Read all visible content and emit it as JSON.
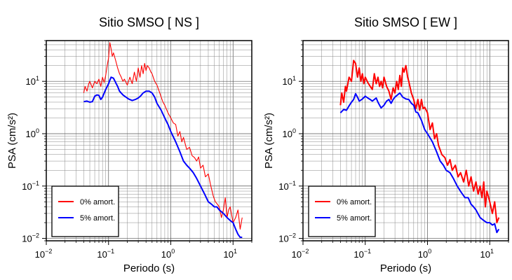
{
  "chart_data": [
    {
      "type": "line",
      "title": "Sitio SMSO [ NS ]",
      "xlabel": "Periodo (s)",
      "ylabel": "PSA (cm/s²)",
      "xscale": "log",
      "yscale": "log",
      "xlim": [
        0.01,
        20
      ],
      "ylim": [
        0.009,
        60
      ],
      "grid": true,
      "legend_position": "bottom-left",
      "series": [
        {
          "name": "0% amort.",
          "color": "#ff0000",
          "x": [
            0.04,
            0.042,
            0.045,
            0.048,
            0.05,
            0.055,
            0.06,
            0.065,
            0.07,
            0.075,
            0.08,
            0.085,
            0.09,
            0.095,
            0.1,
            0.105,
            0.11,
            0.115,
            0.12,
            0.13,
            0.14,
            0.15,
            0.16,
            0.17,
            0.18,
            0.2,
            0.22,
            0.24,
            0.26,
            0.28,
            0.3,
            0.32,
            0.34,
            0.36,
            0.38,
            0.4,
            0.42,
            0.45,
            0.48,
            0.5,
            0.55,
            0.6,
            0.65,
            0.7,
            0.75,
            0.8,
            0.9,
            1.0,
            1.1,
            1.2,
            1.3,
            1.4,
            1.5,
            1.6,
            1.8,
            2.0,
            2.2,
            2.4,
            2.6,
            2.8,
            3.0,
            3.3,
            3.6,
            4.0,
            4.4,
            4.8,
            5.2,
            5.6,
            6.0,
            6.5,
            7.0,
            7.5,
            8.0,
            8.5,
            9.0,
            10.0,
            11.0,
            12.0,
            13.0,
            14.0
          ],
          "y": [
            6.0,
            8.0,
            6.5,
            9.0,
            10.0,
            7.5,
            10.0,
            9.0,
            11.0,
            8.0,
            12.0,
            9.5,
            13.0,
            20.0,
            28.0,
            55.0,
            42.0,
            30.0,
            35.0,
            25.0,
            18.0,
            14.0,
            12.0,
            10.0,
            11.0,
            8.5,
            12.0,
            9.0,
            15.0,
            10.0,
            18.0,
            12.0,
            20.0,
            14.0,
            22.0,
            16.0,
            20.0,
            18.0,
            15.0,
            14.0,
            10.0,
            8.5,
            6.5,
            5.0,
            4.0,
            3.5,
            2.5,
            2.0,
            1.6,
            1.5,
            0.9,
            1.1,
            0.7,
            0.85,
            0.5,
            0.55,
            0.38,
            0.35,
            0.3,
            0.36,
            0.22,
            0.25,
            0.15,
            0.17,
            0.1,
            0.065,
            0.05,
            0.045,
            0.04,
            0.025,
            0.035,
            0.06,
            0.025,
            0.035,
            0.04,
            0.02,
            0.025,
            0.035,
            0.015,
            0.025
          ]
        },
        {
          "name": "5% amort.",
          "color": "#0000ff",
          "x": [
            0.04,
            0.045,
            0.05,
            0.055,
            0.06,
            0.065,
            0.07,
            0.075,
            0.08,
            0.09,
            0.1,
            0.105,
            0.11,
            0.12,
            0.13,
            0.14,
            0.15,
            0.17,
            0.19,
            0.21,
            0.24,
            0.27,
            0.3,
            0.33,
            0.36,
            0.4,
            0.45,
            0.5,
            0.55,
            0.6,
            0.7,
            0.8,
            0.9,
            1.0,
            1.2,
            1.4,
            1.6,
            1.8,
            2.0,
            2.3,
            2.6,
            3.0,
            3.5,
            4.0,
            4.5,
            5.0,
            5.5,
            6.0,
            7.0,
            8.0,
            9.0,
            10.0,
            11.0,
            12.0,
            13.0,
            14.0
          ],
          "y": [
            4.1,
            4.2,
            4.0,
            4.1,
            5.2,
            5.5,
            5.4,
            4.5,
            5.0,
            7.0,
            9.0,
            10.5,
            12.0,
            11.5,
            9.5,
            8.0,
            6.5,
            5.5,
            5.0,
            4.6,
            4.3,
            4.5,
            4.8,
            5.3,
            6.0,
            6.5,
            6.5,
            6.0,
            5.0,
            3.8,
            2.8,
            2.0,
            1.5,
            1.1,
            0.7,
            0.45,
            0.3,
            0.25,
            0.22,
            0.18,
            0.14,
            0.1,
            0.07,
            0.05,
            0.045,
            0.04,
            0.04,
            0.035,
            0.03,
            0.025,
            0.022,
            0.02,
            0.015,
            0.012,
            0.0105,
            0.0105
          ]
        }
      ]
    },
    {
      "type": "line",
      "title": "Sitio SMSO [ EW ]",
      "xlabel": "Periodo (s)",
      "ylabel": "PSA (cm/s²)",
      "xscale": "log",
      "yscale": "log",
      "xlim": [
        0.01,
        20
      ],
      "ylim": [
        0.009,
        60
      ],
      "grid": true,
      "legend_position": "bottom-left",
      "series": [
        {
          "name": "0% amort.",
          "color": "#ff0000",
          "x": [
            0.04,
            0.042,
            0.045,
            0.048,
            0.05,
            0.055,
            0.06,
            0.065,
            0.07,
            0.075,
            0.08,
            0.085,
            0.09,
            0.095,
            0.1,
            0.11,
            0.12,
            0.13,
            0.14,
            0.15,
            0.16,
            0.17,
            0.18,
            0.19,
            0.2,
            0.22,
            0.24,
            0.26,
            0.28,
            0.3,
            0.32,
            0.34,
            0.36,
            0.38,
            0.4,
            0.42,
            0.45,
            0.48,
            0.5,
            0.55,
            0.6,
            0.65,
            0.7,
            0.75,
            0.8,
            0.85,
            0.9,
            1.0,
            1.1,
            1.2,
            1.3,
            1.4,
            1.5,
            1.7,
            1.9,
            2.1,
            2.3,
            2.5,
            2.8,
            3.1,
            3.4,
            3.8,
            4.2,
            4.6,
            5.0,
            5.5,
            6.0,
            6.5,
            7.0,
            7.5,
            8.0,
            8.5,
            9.0,
            10.0,
            11.0,
            12.0,
            13.0,
            14.0
          ],
          "y": [
            3.5,
            6.0,
            4.0,
            8.0,
            6.5,
            12.0,
            10.0,
            25.0,
            22.0,
            12.0,
            18.0,
            10.0,
            14.0,
            9.0,
            12.0,
            9.5,
            8.0,
            7.0,
            14.0,
            9.0,
            12.0,
            8.0,
            10.0,
            7.5,
            12.0,
            8.0,
            6.5,
            4.5,
            7.5,
            6.0,
            10.0,
            7.0,
            13.0,
            8.0,
            18.0,
            15.0,
            20.0,
            12.0,
            10.0,
            6.0,
            4.5,
            3.0,
            4.5,
            2.8,
            4.5,
            3.0,
            3.2,
            2.5,
            1.2,
            1.6,
            0.8,
            1.0,
            0.6,
            0.4,
            0.35,
            0.25,
            0.32,
            0.2,
            0.25,
            0.15,
            0.18,
            0.12,
            0.2,
            0.1,
            0.15,
            0.08,
            0.12,
            0.07,
            0.1,
            0.06,
            0.12,
            0.04,
            0.08,
            0.05,
            0.03,
            0.05,
            0.02,
            0.025
          ]
        },
        {
          "name": "5% amort.",
          "color": "#0000ff",
          "x": [
            0.04,
            0.045,
            0.05,
            0.055,
            0.06,
            0.065,
            0.07,
            0.075,
            0.08,
            0.09,
            0.1,
            0.11,
            0.12,
            0.13,
            0.14,
            0.15,
            0.16,
            0.17,
            0.18,
            0.2,
            0.22,
            0.24,
            0.26,
            0.28,
            0.3,
            0.33,
            0.36,
            0.4,
            0.45,
            0.5,
            0.55,
            0.6,
            0.65,
            0.7,
            0.8,
            0.9,
            1.0,
            1.2,
            1.4,
            1.6,
            1.8,
            2.0,
            2.3,
            2.6,
            3.0,
            3.5,
            4.0,
            4.5,
            5.0,
            5.5,
            6.0,
            7.0,
            8.0,
            9.0,
            10.0,
            11.0,
            12.0,
            13.0,
            14.0
          ],
          "y": [
            2.5,
            2.9,
            2.8,
            3.4,
            4.0,
            4.5,
            5.8,
            5.0,
            4.2,
            4.6,
            5.2,
            4.8,
            4.5,
            4.2,
            4.5,
            4.8,
            4.0,
            3.5,
            3.1,
            3.5,
            4.2,
            4.5,
            3.8,
            4.5,
            5.0,
            5.5,
            6.0,
            5.0,
            4.6,
            4.5,
            3.8,
            3.5,
            2.6,
            2.5,
            1.8,
            1.2,
            1.0,
            0.7,
            0.45,
            0.3,
            0.25,
            0.2,
            0.18,
            0.14,
            0.1,
            0.075,
            0.06,
            0.06,
            0.045,
            0.04,
            0.035,
            0.025,
            0.022,
            0.02,
            0.02,
            0.018,
            0.019,
            0.013,
            0.015
          ]
        }
      ]
    }
  ]
}
